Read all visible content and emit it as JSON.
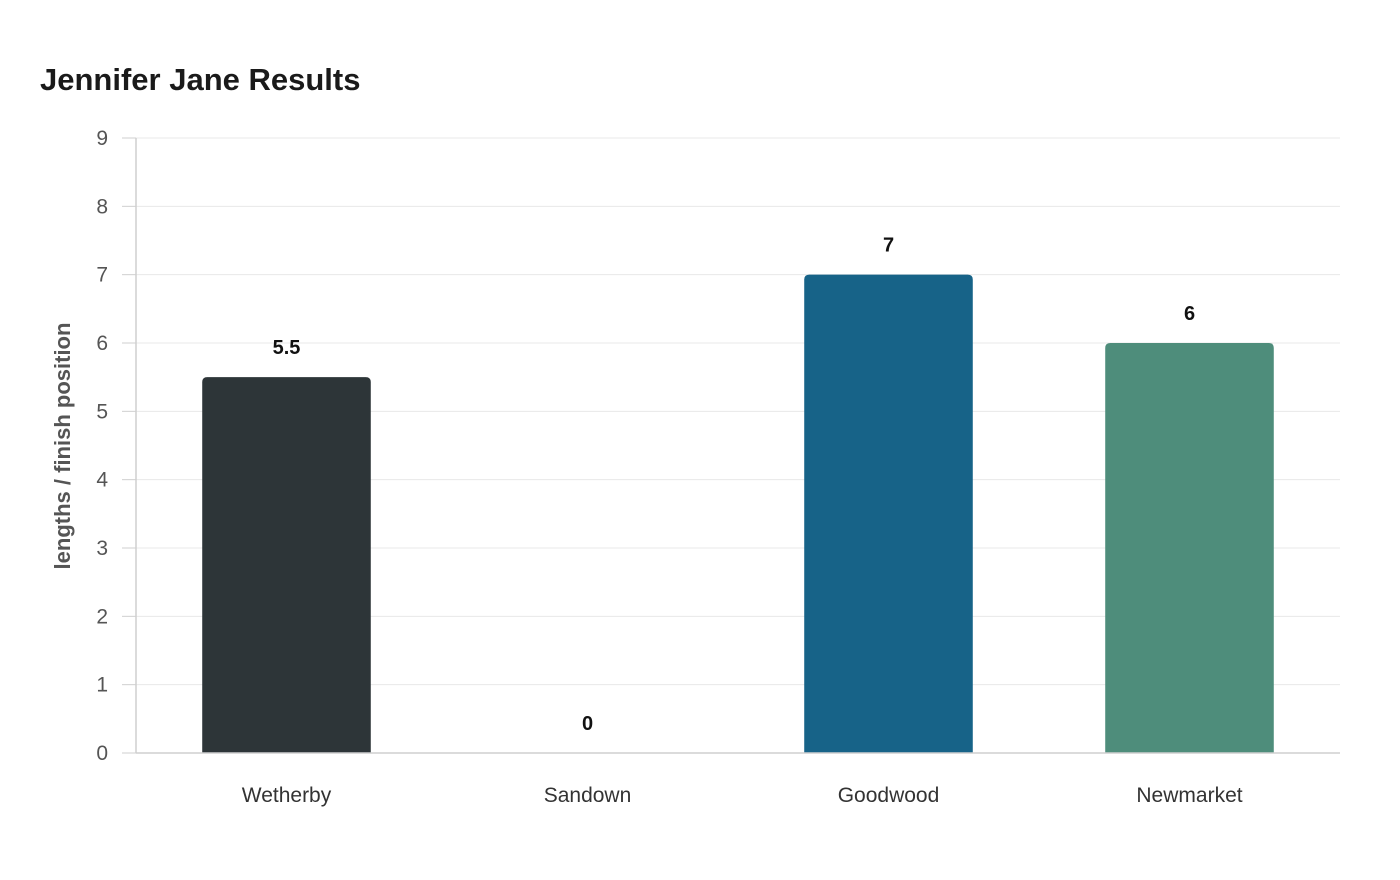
{
  "chart_data": {
    "type": "bar",
    "title": "Jennifer Jane Results",
    "ylabel": "lengths / finish position",
    "xlabel": "",
    "categories": [
      "Wetherby",
      "Sandown",
      "Goodwood",
      "Newmarket"
    ],
    "values": [
      5.5,
      0,
      7,
      6
    ],
    "data_labels": [
      "5.5",
      "0",
      "7",
      "6"
    ],
    "colors": [
      "#2d3538",
      "#ffffff",
      "#176388",
      "#4e8d7b"
    ],
    "ylim": [
      0,
      9
    ],
    "yticks": [
      0,
      1,
      2,
      3,
      4,
      5,
      6,
      7,
      8,
      9
    ],
    "grid": true,
    "legend": "none"
  }
}
